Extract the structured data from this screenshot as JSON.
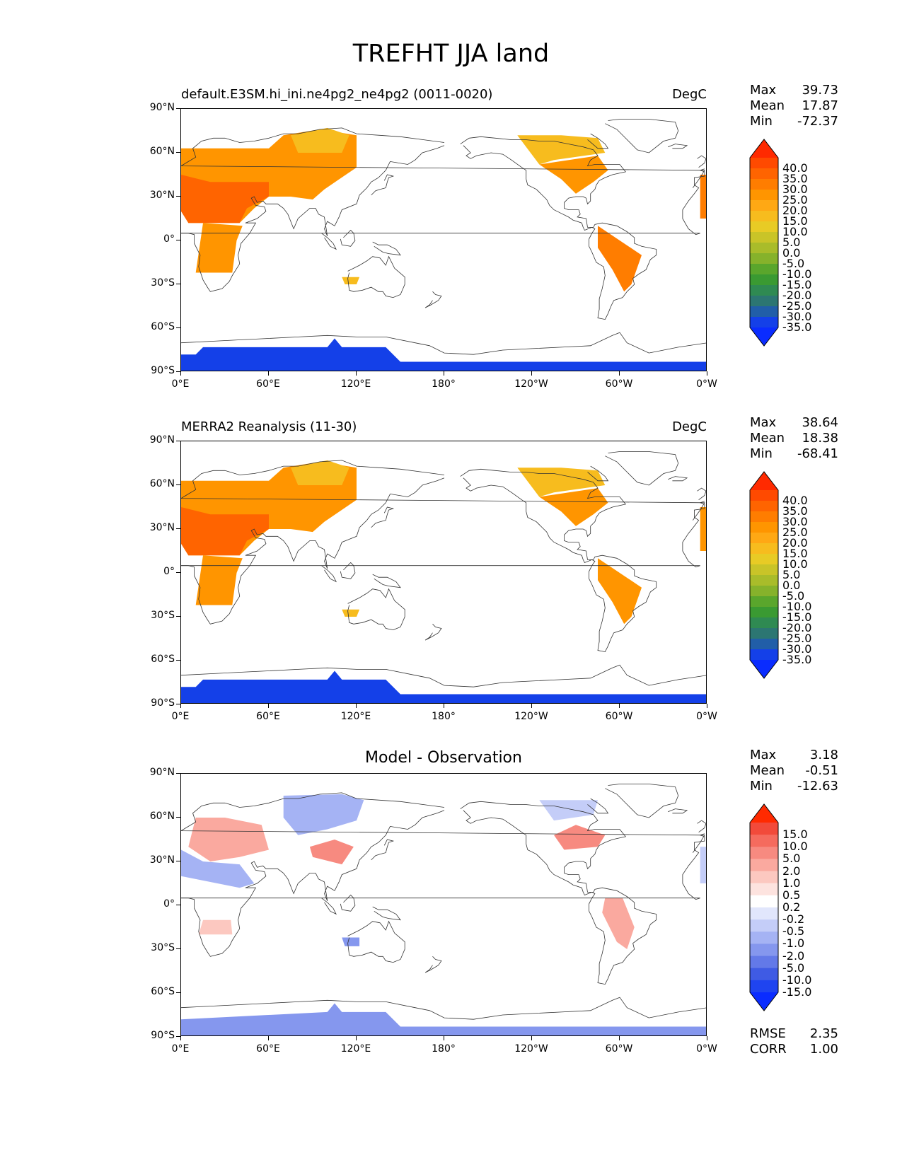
{
  "figure_title": "TREFHT JJA land",
  "panels": [
    {
      "label_left": "default.E3SM.hi_ini.ne4pg2_ne4pg2 (0011-0020)",
      "label_right": "DegC",
      "label_center": "",
      "stats": [
        {
          "name": "Max",
          "value": "39.73"
        },
        {
          "name": "Mean",
          "value": "17.87"
        },
        {
          "name": "Min",
          "value": "-72.37"
        }
      ],
      "extra_stats": [],
      "colorbar": {
        "ticks": [
          "40.0",
          "35.0",
          "30.0",
          "25.0",
          "20.0",
          "15.0",
          "10.0",
          "5.0",
          "0.0",
          "-5.0",
          "-10.0",
          "-15.0",
          "-20.0",
          "-25.0",
          "-30.0",
          "-35.0"
        ],
        "colors": [
          "#ff2a00",
          "#ff4a00",
          "#ff6400",
          "#ff7d00",
          "#ff9500",
          "#ffa814",
          "#f7bc1e",
          "#e8cb25",
          "#c9c428",
          "#a9bc2a",
          "#86b22b",
          "#5aa62c",
          "#3a9a32",
          "#2f8a52",
          "#2c7672",
          "#215ea8",
          "#1440e8",
          "#0a2cff"
        ]
      },
      "map_fields": [
        "Sahara/Arabia 30-40 DegC",
        "Europe/Asia 20-30 DegC",
        "Siberia 10-15 DegC",
        "North America 15-25 DegC",
        "South America 25 DegC",
        "Africa 25 DegC",
        "Australia 15 DegC",
        "Antarctica -35 DegC"
      ]
    },
    {
      "label_left": "MERRA2 Reanalysis (11-30)",
      "label_right": "DegC",
      "label_center": "",
      "stats": [
        {
          "name": "Max",
          "value": "38.64"
        },
        {
          "name": "Mean",
          "value": "18.38"
        },
        {
          "name": "Min",
          "value": "-68.41"
        }
      ],
      "extra_stats": [],
      "colorbar": {
        "ticks": [
          "40.0",
          "35.0",
          "30.0",
          "25.0",
          "20.0",
          "15.0",
          "10.0",
          "5.0",
          "0.0",
          "-5.0",
          "-10.0",
          "-15.0",
          "-20.0",
          "-25.0",
          "-30.0",
          "-35.0"
        ],
        "colors": [
          "#ff2a00",
          "#ff4a00",
          "#ff6400",
          "#ff7d00",
          "#ff9500",
          "#ffa814",
          "#f7bc1e",
          "#e8cb25",
          "#c9c428",
          "#a9bc2a",
          "#86b22b",
          "#5aa62c",
          "#3a9a32",
          "#2f8a52",
          "#2c7672",
          "#215ea8",
          "#1440e8",
          "#0a2cff"
        ]
      }
    },
    {
      "label_left": "",
      "label_right": "",
      "label_center": "Model - Observation",
      "stats": [
        {
          "name": "Max",
          "value": "3.18"
        },
        {
          "name": "Mean",
          "value": "-0.51"
        },
        {
          "name": "Min",
          "value": "-12.63"
        }
      ],
      "extra_stats": [
        {
          "name": "RMSE",
          "value": "2.35"
        },
        {
          "name": "CORR",
          "value": "1.00"
        }
      ],
      "colorbar": {
        "ticks": [
          "15.0",
          "10.0",
          "5.0",
          "2.0",
          "1.0",
          "0.5",
          "0.2",
          "-0.2",
          "-0.5",
          "-1.0",
          "-2.0",
          "-5.0",
          "-10.0",
          "-15.0"
        ],
        "colors": [
          "#ff2a00",
          "#f24a3a",
          "#f56b5e",
          "#f78a80",
          "#faa99f",
          "#fcc8c0",
          "#fde3df",
          "#ffffff",
          "#e1e6fc",
          "#c4cdf8",
          "#a5b3f4",
          "#8597ee",
          "#6379e8",
          "#3f5be4",
          "#1f44f0",
          "#0a2cff"
        ]
      }
    }
  ],
  "axes": {
    "lat_ticks": [
      "90°N",
      "60°N",
      "30°N",
      "0°",
      "30°S",
      "60°S",
      "90°S"
    ],
    "lon_ticks": [
      "0°E",
      "60°E",
      "120°E",
      "180°",
      "120°W",
      "60°W",
      "0°W"
    ]
  },
  "colors": {
    "coastline": "#333333",
    "frame": "#000000"
  }
}
